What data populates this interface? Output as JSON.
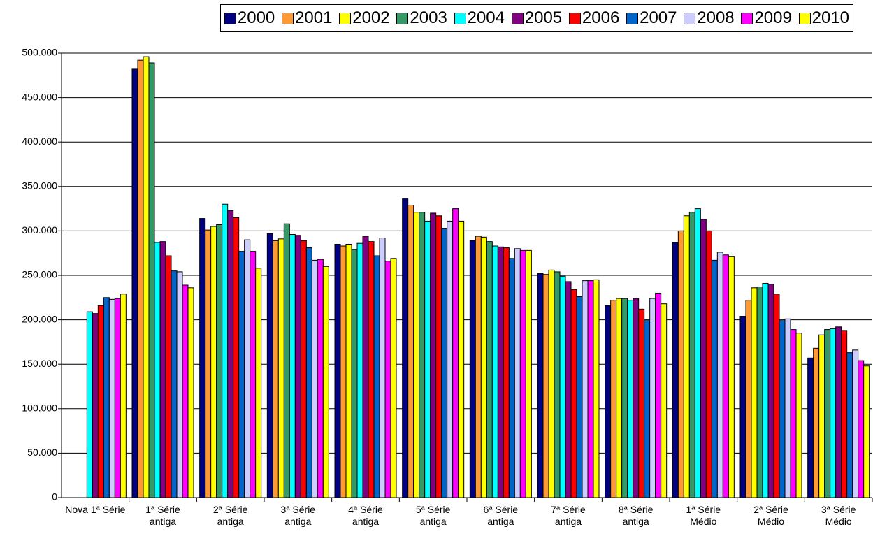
{
  "chart_data": {
    "type": "bar",
    "categories": [
      "Nova 1ª Série",
      "1ª Série antiga",
      "2ª Série antiga",
      "3ª Série antiga",
      "4ª Série antiga",
      "5ª Série antiga",
      "6ª Série antiga",
      "7ª Série antiga",
      "8ª Série antiga",
      "1ª Série Médio",
      "2ª Série Médio",
      "3ª Série Médio"
    ],
    "series": [
      {
        "name": "2000",
        "color": "#000080",
        "values": [
          null,
          482000,
          314000,
          297000,
          285000,
          336000,
          289000,
          252000,
          216000,
          287000,
          204000,
          157000
        ]
      },
      {
        "name": "2001",
        "color": "#ff9933",
        "values": [
          null,
          492000,
          301000,
          289000,
          283000,
          329000,
          294000,
          251000,
          222000,
          300000,
          222000,
          168000
        ]
      },
      {
        "name": "2002",
        "color": "#ffff00",
        "values": [
          null,
          496000,
          305000,
          291000,
          285000,
          321000,
          293000,
          256000,
          224000,
          317000,
          236000,
          183000
        ]
      },
      {
        "name": "2003",
        "color": "#339966",
        "values": [
          null,
          489000,
          307000,
          308000,
          279000,
          321000,
          288000,
          254000,
          224000,
          321000,
          237000,
          189000
        ]
      },
      {
        "name": "2004",
        "color": "#00ffff",
        "values": [
          209000,
          287000,
          330000,
          296000,
          286000,
          311000,
          283000,
          249000,
          222000,
          325000,
          241000,
          190000
        ]
      },
      {
        "name": "2005",
        "color": "#800080",
        "values": [
          207000,
          288000,
          323000,
          295000,
          294000,
          320000,
          282000,
          243000,
          224000,
          313000,
          240000,
          192000
        ]
      },
      {
        "name": "2006",
        "color": "#ff0000",
        "values": [
          216000,
          272000,
          315000,
          289000,
          288000,
          317000,
          281000,
          234000,
          212000,
          300000,
          229000,
          188000
        ]
      },
      {
        "name": "2007",
        "color": "#0066cc",
        "values": [
          225000,
          255000,
          277000,
          281000,
          272000,
          303000,
          269000,
          226000,
          199000,
          267000,
          199000,
          163000
        ]
      },
      {
        "name": "2008",
        "color": "#ccccff",
        "values": [
          223000,
          254000,
          290000,
          267000,
          292000,
          311000,
          280000,
          244000,
          224000,
          276000,
          201000,
          166000
        ]
      },
      {
        "name": "2009",
        "color": "#ff00ff",
        "values": [
          224000,
          239000,
          277000,
          268000,
          266000,
          325000,
          278000,
          244000,
          230000,
          273000,
          189000,
          154000
        ]
      },
      {
        "name": "2010",
        "color": "#ffff00",
        "values": [
          229000,
          236000,
          258000,
          260000,
          269000,
          311000,
          278000,
          245000,
          218000,
          271000,
          185000,
          148000
        ]
      }
    ],
    "ylim": [
      0,
      500000
    ],
    "yticks": [
      0,
      {
        "value": 50000,
        "label": "50.000"
      },
      {
        "value": 100000,
        "label": "100.000"
      },
      {
        "value": 150000,
        "label": "150.000"
      },
      {
        "value": 200000,
        "label": "200.000"
      },
      {
        "value": 250000,
        "label": "250.000"
      },
      {
        "value": 300000,
        "label": "300.000"
      },
      {
        "value": 350000,
        "label": "350.000"
      },
      {
        "value": 400000,
        "label": "400.000"
      },
      {
        "value": 450000,
        "label": "450.000"
      },
      {
        "value": 500000,
        "label": "500.000"
      }
    ],
    "grid": true,
    "legend": "top"
  }
}
